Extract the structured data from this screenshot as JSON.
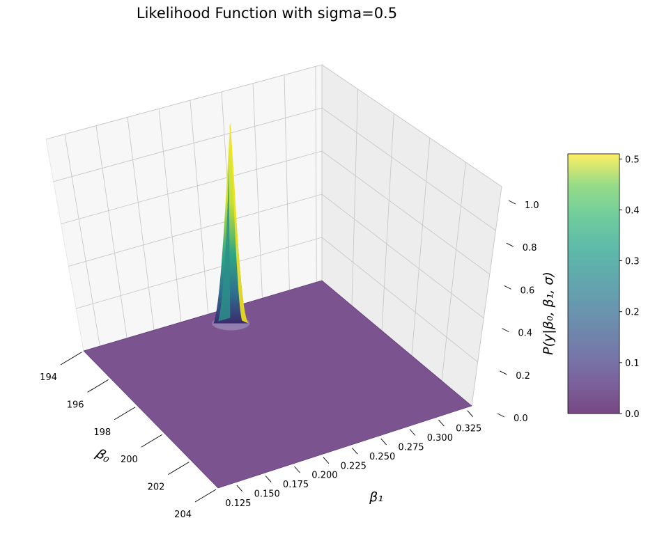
{
  "chart_data": {
    "type": "surface3d",
    "title": "Likelihood Function with sigma=0.5",
    "xlabel": "β₀",
    "ylabel": "β₁",
    "zlabel": "P(y|β₀, β₁, σ)",
    "x_ticks": [
      "194",
      "196",
      "198",
      "200",
      "202",
      "204"
    ],
    "y_ticks": [
      "0.125",
      "0.150",
      "0.175",
      "0.200",
      "0.225",
      "0.250",
      "0.275",
      "0.300",
      "0.325"
    ],
    "z_ticks": [
      "0.0",
      "0.2",
      "0.4",
      "0.6",
      "0.8",
      "1.0"
    ],
    "xlim": [
      194,
      204
    ],
    "ylim": [
      0.11,
      0.33
    ],
    "zlim": [
      0,
      1.0
    ],
    "peak": {
      "beta0": 194.6,
      "beta1": 0.238,
      "value": 1.0
    },
    "colorbar": {
      "ticks": [
        "0.0",
        "0.1",
        "0.2",
        "0.3",
        "0.4",
        "0.5"
      ],
      "range": [
        0,
        0.51
      ],
      "colormap": "viridis"
    },
    "grid": true
  }
}
